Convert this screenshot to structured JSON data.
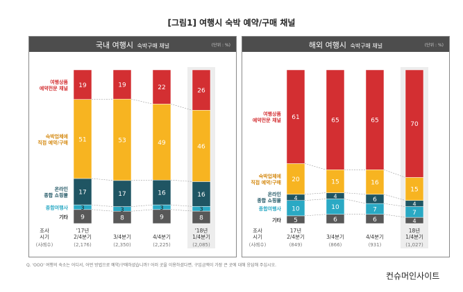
{
  "title": "[그림1] 여행시 숙박 예약/구매 채널",
  "panels": {
    "domestic": {
      "title_main": "국내 여행시",
      "title_sub": "숙박구매 채널",
      "unit": "(단위 : %)"
    },
    "overseas": {
      "title_main": "해외 여행시",
      "title_sub": "숙박구매 채널",
      "unit": "(단위 : %)"
    }
  },
  "footnote": "Q. 'OOO' 여행의 숙소는 어디서, 어떤 방법으로 예약/구매하셨습니까? 어러 곳을 이용하셨다면, 구입금액이 가장 큰 곳에 대해 응답해 주십시오.",
  "brand": "컨슈머인사이트",
  "colors": {
    "red": "#d32f32",
    "orange": "#f7b421",
    "navy": "#1f5563",
    "cyan": "#2aa9c4",
    "gray": "#585858"
  },
  "chart_data": [
    {
      "type": "bar",
      "stacked": true,
      "title": "국내 여행시 숙박구매 채널",
      "unit": "(단위 : %)",
      "axis_label": [
        "조사",
        "시기"
      ],
      "sample_label": "(사례수)",
      "categories": [
        {
          "lines": [
            "'17년",
            "2/4분기"
          ],
          "n": "(2,176)"
        },
        {
          "lines": [
            "3/4분기"
          ],
          "n": "(2,350)"
        },
        {
          "lines": [
            "4/4분기"
          ],
          "n": "(2,225)"
        },
        {
          "lines": [
            "'18년",
            "1/4분기"
          ],
          "n": "(2,085)"
        }
      ],
      "highlight_last": true,
      "series": [
        {
          "name": "기타",
          "label_lines": [
            "기타"
          ],
          "color": "gray",
          "label_color": "#333333",
          "values": [
            9,
            8,
            9,
            8
          ]
        },
        {
          "name": "종합여행사",
          "label_lines": [
            "종합여행사"
          ],
          "color": "cyan",
          "label_color": "#2aa9c4",
          "values": [
            3,
            3,
            3,
            3
          ]
        },
        {
          "name": "온라인 종합 쇼핑몰",
          "label_lines": [
            "온라인",
            "종합 쇼핑몰"
          ],
          "color": "navy",
          "label_color": "#1f5563",
          "values": [
            17,
            17,
            16,
            16
          ]
        },
        {
          "name": "숙박업체에 직접 예약/구매",
          "label_lines": [
            "숙박업체에",
            "직접 예약/구매"
          ],
          "color": "orange",
          "label_color": "#d4880f",
          "values": [
            51,
            53,
            49,
            46
          ]
        },
        {
          "name": "여행상품 예약전문 채널",
          "label_lines": [
            "여행상품",
            "예약전문 채널"
          ],
          "color": "red",
          "label_color": "#d32f32",
          "values": [
            19,
            19,
            22,
            26
          ]
        }
      ]
    },
    {
      "type": "bar",
      "stacked": true,
      "title": "해외 여행시 숙박구매 채널",
      "unit": "(단위 : %)",
      "axis_label": [
        "조사",
        "시기"
      ],
      "sample_label": "(사례수)",
      "categories": [
        {
          "lines": [
            "17년",
            "2/4분기"
          ],
          "n": "(849)"
        },
        {
          "lines": [
            "3/4분기"
          ],
          "n": "(866)"
        },
        {
          "lines": [
            "4/4분기"
          ],
          "n": "(931)"
        },
        {
          "lines": [
            "18년",
            "1/4분기"
          ],
          "n": "(1,027)"
        }
      ],
      "highlight_last": true,
      "series": [
        {
          "name": "기타",
          "label_lines": [
            "기타"
          ],
          "color": "gray",
          "label_color": "#333333",
          "values": [
            5,
            6,
            6,
            4
          ]
        },
        {
          "name": "종합여행사",
          "label_lines": [
            "종합여행사"
          ],
          "color": "cyan",
          "label_color": "#2aa9c4",
          "values": [
            10,
            10,
            7,
            7
          ]
        },
        {
          "name": "온라인 종합 쇼핑몰",
          "label_lines": [
            "온라인",
            "종합 쇼핑몰"
          ],
          "color": "navy",
          "label_color": "#1f5563",
          "values": [
            4,
            4,
            6,
            4
          ]
        },
        {
          "name": "숙박업체에 직접 예약/구매",
          "label_lines": [
            "숙박업체에",
            "직접 예약/구매"
          ],
          "color": "orange",
          "label_color": "#d4880f",
          "values": [
            20,
            15,
            16,
            15
          ]
        },
        {
          "name": "여행상품 예약전문 채널",
          "label_lines": [
            "여행상품",
            "예약전문 채널"
          ],
          "color": "red",
          "label_color": "#d32f32",
          "values": [
            61,
            65,
            65,
            70
          ]
        }
      ]
    }
  ]
}
